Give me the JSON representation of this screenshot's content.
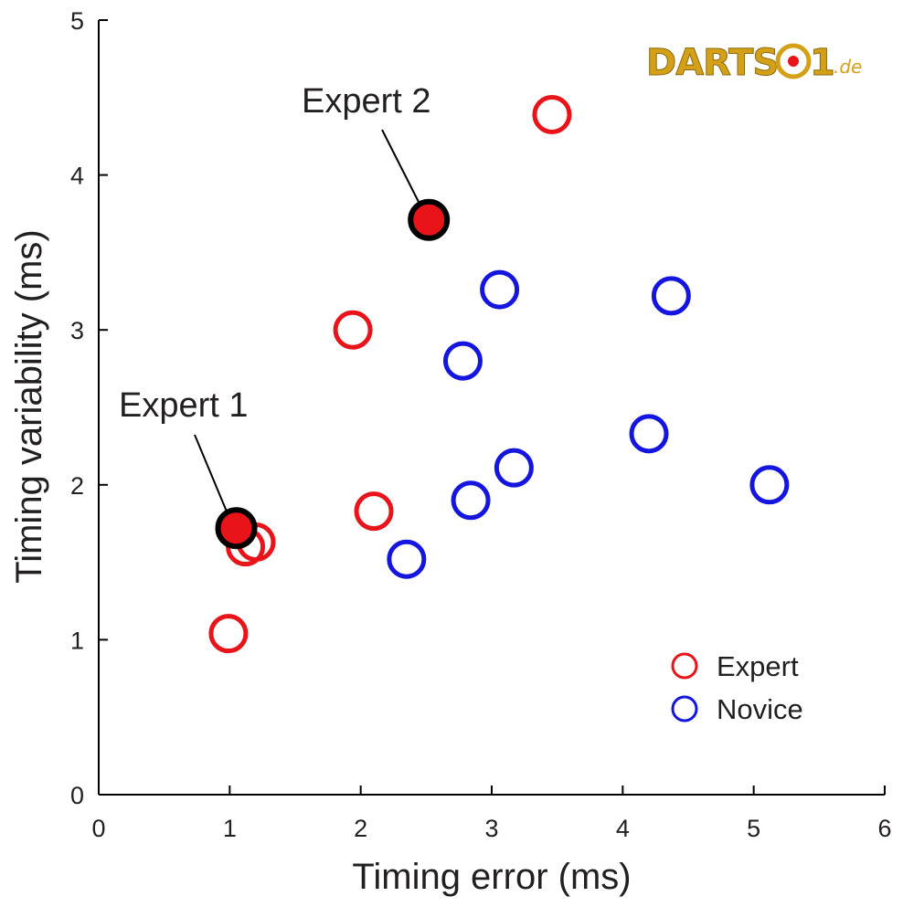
{
  "chart_data": {
    "type": "scatter",
    "xlabel": "Timing error (ms)",
    "ylabel": "Timing variability (ms)",
    "xlim": [
      0,
      6
    ],
    "ylim": [
      0,
      5
    ],
    "xticks": [
      "0",
      "1",
      "2",
      "3",
      "4",
      "5",
      "6"
    ],
    "yticks": [
      "0",
      "1",
      "2",
      "3",
      "4",
      "5"
    ],
    "grid": false,
    "legend_position": "bottom-right",
    "series": [
      {
        "name": "Expert",
        "color": "#e8141a",
        "marker": "open-circle",
        "points": [
          {
            "x": 0.99,
            "y": 1.04
          },
          {
            "x": 1.12,
            "y": 1.6
          },
          {
            "x": 1.2,
            "y": 1.63
          },
          {
            "x": 1.94,
            "y": 3.0
          },
          {
            "x": 2.1,
            "y": 1.83
          },
          {
            "x": 3.46,
            "y": 4.39
          }
        ]
      },
      {
        "name": "Novice",
        "color": "#1515e0",
        "marker": "open-circle",
        "points": [
          {
            "x": 2.35,
            "y": 1.52
          },
          {
            "x": 2.78,
            "y": 2.8
          },
          {
            "x": 2.84,
            "y": 1.9
          },
          {
            "x": 3.06,
            "y": 3.26
          },
          {
            "x": 3.17,
            "y": 2.11
          },
          {
            "x": 4.2,
            "y": 2.33
          },
          {
            "x": 4.37,
            "y": 3.22
          },
          {
            "x": 5.12,
            "y": 2.0
          }
        ]
      }
    ],
    "highlighted": [
      {
        "label": "Expert 1",
        "x": 1.05,
        "y": 1.72,
        "fill": "#e8141a",
        "stroke": "#000000"
      },
      {
        "label": "Expert 2",
        "x": 2.52,
        "y": 3.71,
        "fill": "#e8141a",
        "stroke": "#000000"
      }
    ]
  },
  "watermark": {
    "text": "DARTS01.de",
    "color": "#d4a017"
  }
}
